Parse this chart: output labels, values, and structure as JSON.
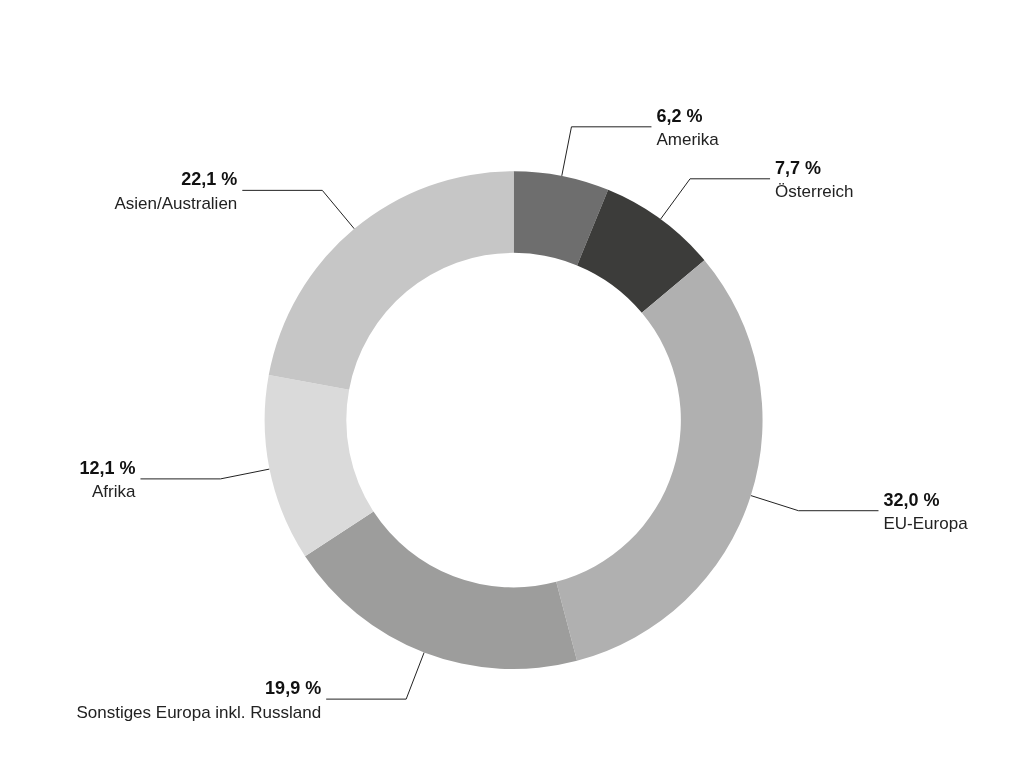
{
  "chart_data": {
    "type": "donut",
    "categories": [
      "Amerika",
      "Österreich",
      "EU-Europa",
      "Sonstiges Europa inkl. Russland",
      "Afrika",
      "Asien/Australien"
    ],
    "values": [
      6.2,
      7.7,
      32.0,
      19.9,
      12.1,
      22.1
    ],
    "value_labels": [
      "6,2 %",
      "7,7 %",
      "32,0 %",
      "19,9 %",
      "12,1 %",
      "22,1 %"
    ],
    "colors": [
      "#6e6e6e",
      "#3c3c3a",
      "#b0b0b0",
      "#9d9d9c",
      "#dadada",
      "#c6c6c6"
    ],
    "legend": false
  }
}
